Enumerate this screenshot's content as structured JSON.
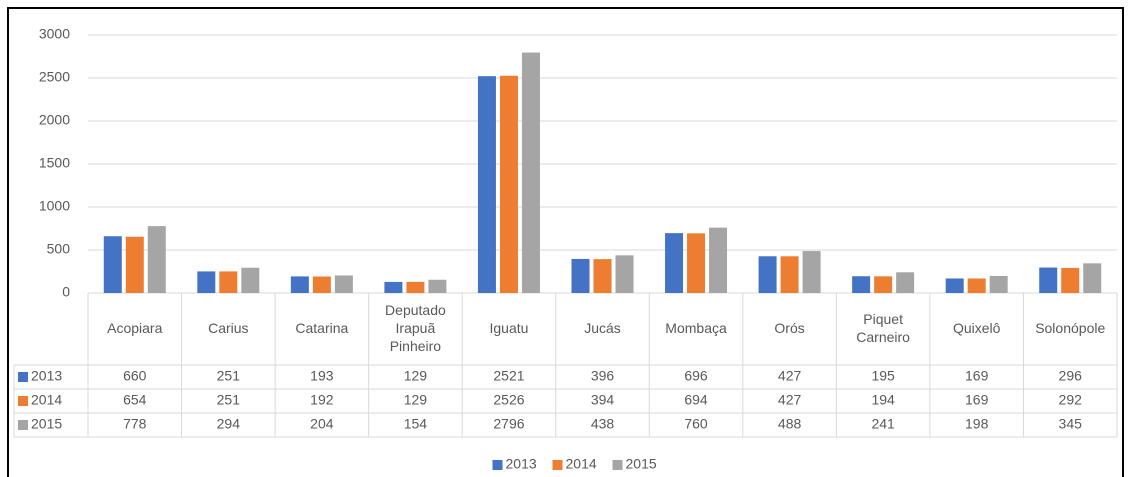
{
  "chart_data": {
    "type": "bar",
    "categories": [
      "Acopiara",
      "Carius",
      "Catarina",
      "Deputado Irapuã Pinheiro",
      "Iguatu",
      "Jucás",
      "Mombaça",
      "Orós",
      "Piquet Carneiro",
      "Quixelô",
      "Solonópole"
    ],
    "series": [
      {
        "name": "2013",
        "color": "#4472c4",
        "values": [
          660,
          251,
          193,
          129,
          2521,
          396,
          696,
          427,
          195,
          169,
          296
        ]
      },
      {
        "name": "2014",
        "color": "#ed7d31",
        "values": [
          654,
          251,
          192,
          129,
          2526,
          394,
          694,
          427,
          194,
          169,
          292
        ]
      },
      {
        "name": "2015",
        "color": "#a5a5a5",
        "values": [
          778,
          294,
          204,
          154,
          2796,
          438,
          760,
          488,
          241,
          198,
          345
        ]
      }
    ],
    "ylim": [
      0,
      3000
    ],
    "yticks": [
      0,
      500,
      1000,
      1500,
      2000,
      2500,
      3000
    ],
    "grid": true,
    "legend": "bottom"
  }
}
